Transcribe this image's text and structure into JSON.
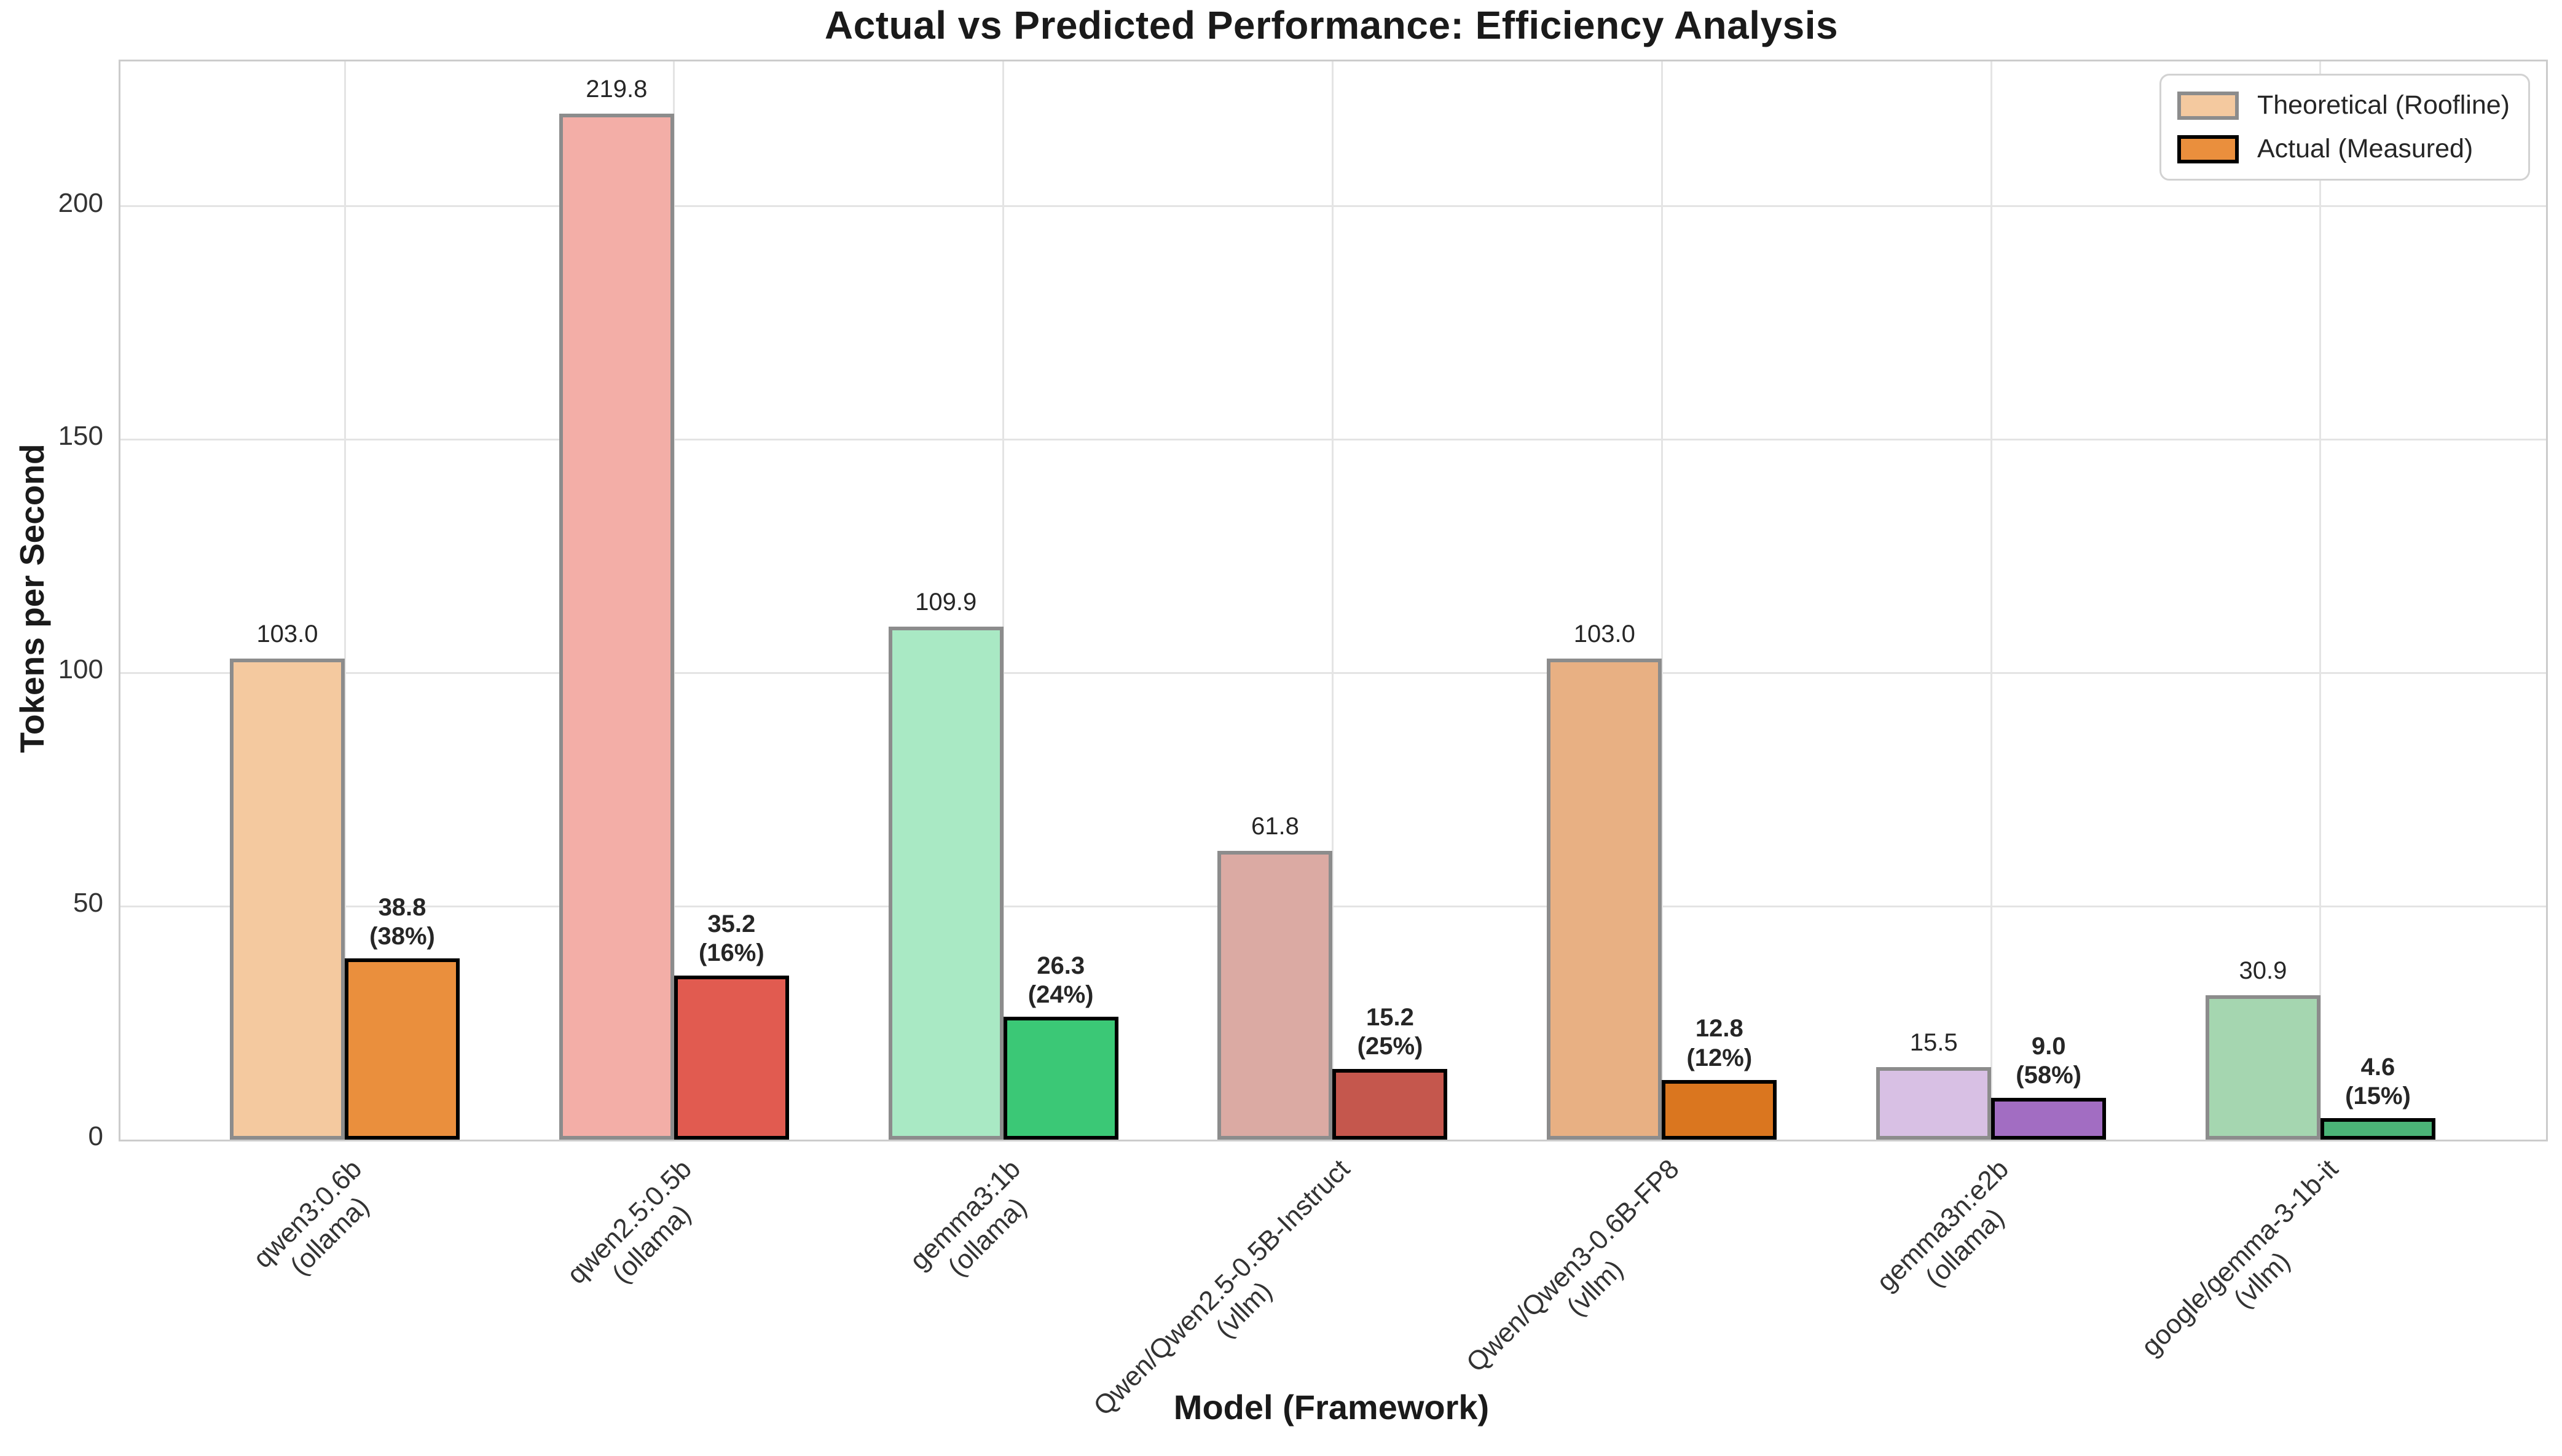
{
  "chart_data": {
    "type": "bar",
    "title": "Actual vs Predicted Performance: Efficiency Analysis",
    "xlabel": "Model (Framework)",
    "ylabel": "Tokens per Second",
    "ylim": [
      0,
      231
    ],
    "yticks": [
      0,
      50,
      100,
      150,
      200
    ],
    "grid": true,
    "legend_position": "upper right",
    "legend": [
      {
        "label": "Theoretical (Roofline)",
        "fill": "#f4c99f",
        "border": "#8c8c8c"
      },
      {
        "label": "Actual (Measured)",
        "fill": "#ea8f3d",
        "border": "#000000"
      }
    ],
    "style": {
      "theo_border": "#8c8c8c",
      "actual_border": "#000000",
      "grid_color": "#e4e4e4",
      "spine_color": "#cccccc",
      "text_color": "#262626"
    },
    "models": [
      {
        "model": "qwen3:0.6b",
        "framework": "ollama",
        "theoretical": 103.0,
        "actual": 38.8,
        "efficiency": "38%",
        "theo_color": "#f4c99f",
        "actual_color": "#ea8f3d"
      },
      {
        "model": "qwen2.5:0.5b",
        "framework": "ollama",
        "theoretical": 219.8,
        "actual": 35.2,
        "efficiency": "16%",
        "theo_color": "#f3aea7",
        "actual_color": "#e15b50"
      },
      {
        "model": "gemma3:1b",
        "framework": "ollama",
        "theoretical": 109.9,
        "actual": 26.3,
        "efficiency": "24%",
        "theo_color": "#a9e9c4",
        "actual_color": "#3bc876"
      },
      {
        "model": "Qwen/Qwen2.5-0.5B-Instruct",
        "framework": "vllm",
        "theoretical": 61.8,
        "actual": 15.2,
        "efficiency": "25%",
        "theo_color": "#dbaaa3",
        "actual_color": "#c5574d"
      },
      {
        "model": "Qwen/Qwen3-0.6B-FP8",
        "framework": "vllm",
        "theoretical": 103.0,
        "actual": 12.8,
        "efficiency": "12%",
        "theo_color": "#e8b083",
        "actual_color": "#da761f"
      },
      {
        "model": "gemma3n:e2b",
        "framework": "ollama",
        "theoretical": 15.5,
        "actual": 9.0,
        "efficiency": "58%",
        "theo_color": "#d8c0e4",
        "actual_color": "#a26dc2"
      },
      {
        "model": "google/gemma-3-1b-it",
        "framework": "vllm",
        "theoretical": 30.9,
        "actual": 4.6,
        "efficiency": "15%",
        "theo_color": "#a5d6b0",
        "actual_color": "#4bb377"
      }
    ]
  }
}
